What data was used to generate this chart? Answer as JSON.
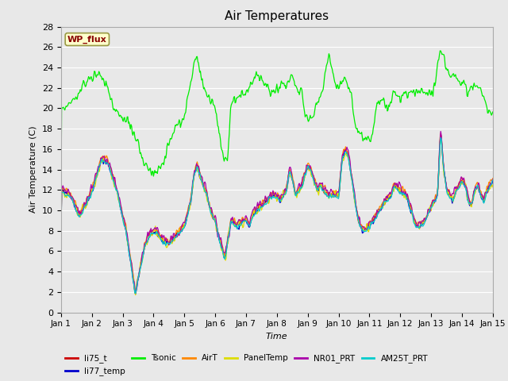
{
  "title": "Air Temperatures",
  "xlabel": "Time",
  "ylabel": "Air Temperature (C)",
  "ylim": [
    0,
    28
  ],
  "yticks": [
    0,
    2,
    4,
    6,
    8,
    10,
    12,
    14,
    16,
    18,
    20,
    22,
    24,
    26,
    28
  ],
  "xtick_labels": [
    "Jan 1",
    "Jan 2",
    "Jan 3",
    "Jan 4",
    "Jan 5",
    "Jan 6",
    "Jan 7",
    "Jan 8",
    "Jan 9",
    "Jan 10",
    "Jan 11",
    "Jan 12",
    "Jan 13",
    "Jan 14",
    "Jan 15"
  ],
  "legend_entries": [
    {
      "label": "li75_t",
      "color": "#cc0000"
    },
    {
      "label": "li77_temp",
      "color": "#0000cc"
    },
    {
      "label": "Tsonic",
      "color": "#00ee00"
    },
    {
      "label": "AirT",
      "color": "#ff8800"
    },
    {
      "label": "PanelTemp",
      "color": "#dddd00"
    },
    {
      "label": "NR01_PRT",
      "color": "#aa00aa"
    },
    {
      "label": "AM25T_PRT",
      "color": "#00cccc"
    }
  ],
  "annotation_text": "WP_flux",
  "annotation_color": "#880000",
  "annotation_bg": "#ffffcc",
  "background_color": "#e8e8e8",
  "title_fontsize": 11
}
